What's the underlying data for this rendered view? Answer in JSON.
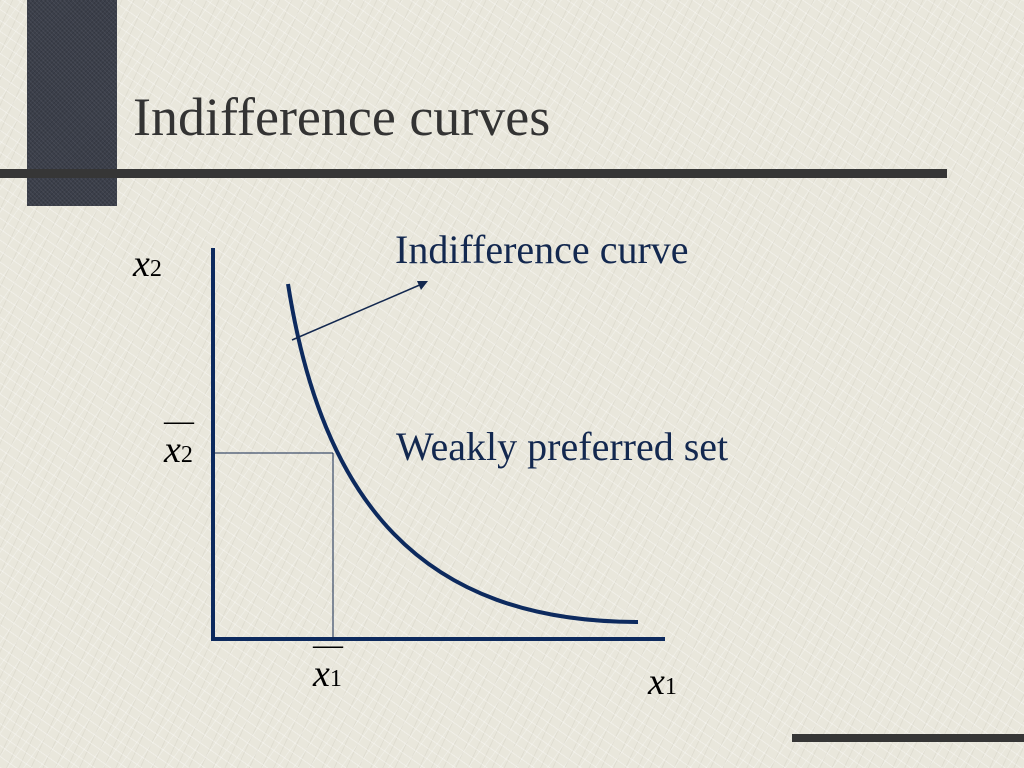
{
  "slide": {
    "title": "Indifference curves"
  },
  "diagram": {
    "annotations": {
      "curve_label": "Indifference curve",
      "region_label": "Weakly preferred set"
    },
    "axes": {
      "y_var": "x",
      "y_sub": "2",
      "x_var": "x",
      "x_sub": "1"
    },
    "reference_point": {
      "x_bar": "—",
      "x_var": "x",
      "x_sub": "1",
      "y_bar": "—",
      "y_var": "x",
      "y_sub": "2"
    }
  },
  "colors": {
    "curve": "#0d2a5e",
    "axes": "#0d2a5e",
    "text_dark_blue": "#13284f",
    "title": "#333333",
    "rule": "#363636"
  }
}
